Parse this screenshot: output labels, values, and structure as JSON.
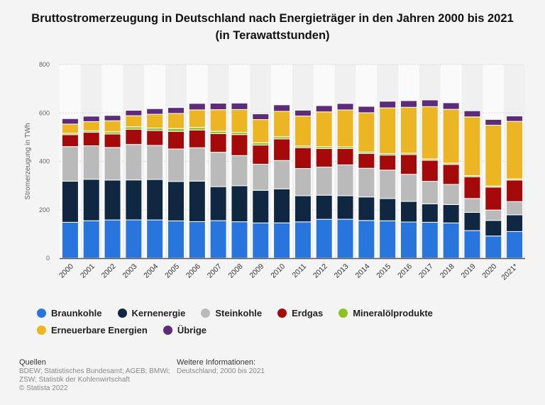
{
  "chart_data": {
    "type": "bar",
    "stacked": true,
    "title": "Bruttostromerzeugung in Deutschland nach Energieträger in den Jahren 2000 bis 2021 (in Terawattstunden)",
    "xlabel": "",
    "ylabel": "Stromerzeugung in TWh",
    "ylim": [
      0,
      800
    ],
    "yticks": [
      "0",
      "200",
      "400",
      "600",
      "800"
    ],
    "grid": true,
    "legend_position": "bottom",
    "categories": [
      "2000",
      "2001",
      "2002",
      "2003",
      "2004",
      "2005",
      "2006",
      "2007",
      "2008",
      "2009",
      "2010",
      "2011",
      "2012",
      "2013",
      "2014",
      "2015",
      "2016",
      "2017",
      "2018",
      "2019",
      "2020",
      "2021*"
    ],
    "series": [
      {
        "name": "Braunkohle",
        "color": "#2876dd",
        "values": [
          148.3,
          154.8,
          158.0,
          158.2,
          158.0,
          154.1,
          151.1,
          155.1,
          150.6,
          145.6,
          145.9,
          150.1,
          160.7,
          160.9,
          155.8,
          154.5,
          149.5,
          148.4,
          145.6,
          114.0,
          91.7,
          110.1
        ]
      },
      {
        "name": "Kernenergie",
        "color": "#0f2740",
        "values": [
          169.6,
          171.3,
          164.8,
          165.1,
          167.1,
          163.0,
          167.3,
          140.5,
          148.8,
          134.9,
          140.6,
          108.0,
          99.5,
          97.3,
          97.1,
          91.8,
          84.9,
          76.3,
          76.0,
          75.1,
          64.4,
          69.1
        ]
      },
      {
        "name": "Steinkohle",
        "color": "#bababa",
        "values": [
          143.1,
          138.4,
          134.6,
          146.5,
          140.8,
          134.1,
          137.9,
          142.0,
          124.6,
          107.9,
          117.0,
          112.4,
          116.4,
          127.3,
          118.6,
          117.7,
          112.2,
          92.9,
          83.2,
          57.5,
          42.8,
          54.5
        ]
      },
      {
        "name": "Erdgas",
        "color": "#a50a0a",
        "values": [
          49.2,
          55.5,
          55.6,
          62.9,
          61.4,
          72.7,
          73.4,
          77.0,
          86.7,
          78.8,
          89.3,
          86.1,
          76.4,
          67.5,
          61.1,
          62.0,
          81.3,
          86.7,
          82.5,
          89.9,
          94.7,
          89.1
        ]
      },
      {
        "name": "Mineralölprodukte",
        "color": "#8ec224",
        "values": [
          5.9,
          5.8,
          9.2,
          9.9,
          10.3,
          11.6,
          10.5,
          9.6,
          9.2,
          9.6,
          8.7,
          6.8,
          7.6,
          7.2,
          5.7,
          6.2,
          5.8,
          5.6,
          5.2,
          4.8,
          4.7,
          4.5
        ]
      },
      {
        "name": "Erneuerbare Energien",
        "color": "#ecb524",
        "values": [
          37.9,
          38.5,
          45.6,
          46.0,
          57.1,
          62.5,
          72.5,
          89.4,
          94.3,
          95.9,
          105.2,
          124.0,
          143.8,
          152.3,
          162.5,
          188.8,
          189.7,
          216.3,
          222.5,
          242.5,
          251.2,
          237.9
        ]
      },
      {
        "name": "Übrige",
        "color": "#5e2a7a",
        "values": [
          22.6,
          22.3,
          22.0,
          22.3,
          23.1,
          24.4,
          26.6,
          26.6,
          26.6,
          23.6,
          26.8,
          24.1,
          25.9,
          26.7,
          26.5,
          27.4,
          27.3,
          27.5,
          27.1,
          25.3,
          23.7,
          22.5
        ]
      }
    ]
  },
  "footer": {
    "sources_heading": "Quellen",
    "sources_lines": [
      "BDEW; Statistisches Bundesamt; AGEB; BMWi;",
      "ZSW; Statistik der Kohlenwirtschaft",
      "© Statista 2022"
    ],
    "info_heading": "Weitere Informationen:",
    "info_text": "Deutschland; 2000 bis 2021"
  }
}
